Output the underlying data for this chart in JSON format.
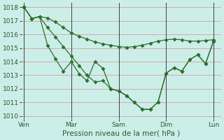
{
  "bg_color": "#cceee8",
  "grid_color": "#d4a0a0",
  "line_color": "#2d6e2d",
  "marker": "D",
  "xlabel": "Pression niveau de la mer( hPa )",
  "ylim": [
    1009.8,
    1018.3
  ],
  "yticks": [
    1010,
    1011,
    1012,
    1013,
    1014,
    1015,
    1016,
    1017,
    1018
  ],
  "xtick_labels": [
    "Ven",
    "Mar",
    "Sam",
    "Dim",
    "Lun"
  ],
  "xtick_positions": [
    0,
    0.25,
    0.5,
    0.75,
    1.0
  ],
  "line1_x": [
    0.0,
    0.042,
    0.083,
    0.125,
    0.167,
    0.208,
    0.25,
    0.292,
    0.333,
    0.375,
    0.417,
    0.458,
    0.5,
    0.542,
    0.583,
    0.625,
    0.667,
    0.708,
    0.75,
    0.792,
    0.833,
    0.875,
    0.917,
    0.958,
    1.0
  ],
  "line1_y": [
    1018.0,
    1017.15,
    1017.3,
    1017.2,
    1016.9,
    1016.5,
    1016.1,
    1015.85,
    1015.65,
    1015.45,
    1015.3,
    1015.2,
    1015.1,
    1015.05,
    1015.1,
    1015.2,
    1015.35,
    1015.5,
    1015.6,
    1015.65,
    1015.6,
    1015.5,
    1015.5,
    1015.55,
    1015.6
  ],
  "line2_x": [
    0.0,
    0.042,
    0.083,
    0.125,
    0.167,
    0.208,
    0.25,
    0.292,
    0.333,
    0.375,
    0.417,
    0.458,
    0.5,
    0.542,
    0.583,
    0.625,
    0.667,
    0.708,
    0.75,
    0.792,
    0.833,
    0.875,
    0.917,
    0.958,
    1.0
  ],
  "line2_y": [
    1018.0,
    1017.15,
    1017.3,
    1015.2,
    1014.2,
    1013.3,
    1014.0,
    1013.1,
    1012.6,
    1014.0,
    1013.5,
    1012.0,
    1011.85,
    1011.5,
    1011.0,
    1010.5,
    1010.5,
    1011.05,
    1013.15,
    1013.55,
    1013.3,
    1014.15,
    1014.5,
    1013.85,
    1015.5
  ],
  "line3_x": [
    0.0,
    0.042,
    0.083,
    0.125,
    0.167,
    0.208,
    0.25,
    0.292,
    0.333,
    0.375,
    0.417,
    0.458,
    0.5,
    0.542,
    0.583,
    0.625,
    0.667,
    0.708,
    0.75,
    0.792,
    0.833,
    0.875,
    0.917,
    0.958,
    1.0
  ],
  "line3_y": [
    1018.0,
    1017.15,
    1017.3,
    1016.5,
    1015.8,
    1015.1,
    1014.4,
    1013.7,
    1013.0,
    1012.5,
    1012.6,
    1012.0,
    1011.85,
    1011.5,
    1011.0,
    1010.5,
    1010.5,
    1011.05,
    1013.15,
    1013.55,
    1013.3,
    1014.15,
    1014.5,
    1013.85,
    1015.5
  ],
  "vline_color": "#404040",
  "tick_color": "#2d5a2d",
  "xlabel_color": "#2d5a2d",
  "xlabel_fontsize": 7.5,
  "tick_fontsize": 6.5
}
